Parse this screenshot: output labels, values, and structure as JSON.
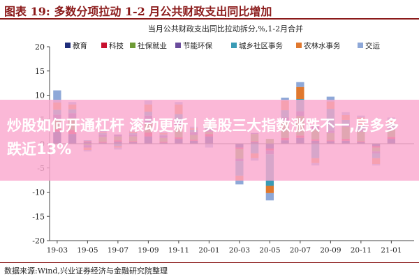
{
  "header": {
    "title": "图表 19: 多数分项拉动 1-2 月公共财政支出同比增加"
  },
  "footer": {
    "source": "数据来源:Wind,兴业证券经济与金融研究院整理"
  },
  "banner": {
    "text": "炒股如何开通杠杆 滚动更新丨美股三大指数涨跌不一,房多多跌近13%"
  },
  "chart_data": {
    "type": "bar",
    "stacked": true,
    "title": "当月公共财政支出同比拉动拆分,%,1-2月合并",
    "ylim": [
      -20,
      20
    ],
    "yticks": [
      -20,
      -15,
      -10,
      -5,
      0,
      5,
      10,
      15,
      20
    ],
    "categories": [
      "19-03",
      "19-04",
      "19-05",
      "19-06",
      "19-07",
      "19-08",
      "19-09",
      "19-10",
      "19-11",
      "19-12",
      "20-01",
      "20-02",
      "20-03",
      "20-04",
      "20-05",
      "20-06",
      "20-07",
      "20-08",
      "20-09",
      "20-10",
      "20-11",
      "20-12",
      "21-01",
      "21-02"
    ],
    "xtick_labels": [
      "19-03",
      "19-05",
      "19-07",
      "19-09",
      "19-11",
      "20-01",
      "20-03",
      "20-05",
      "20-07",
      "20-09",
      "20-11",
      "21-01"
    ],
    "legend_position": "top",
    "series": [
      {
        "name": "教育",
        "color": "#1F2D7A",
        "values": [
          2.5,
          2.0,
          0.3,
          0.2,
          0.4,
          0.3,
          1.5,
          0.2,
          1.0,
          0.6,
          1.5,
          0,
          -0.8,
          0.3,
          -1.0,
          0.7,
          1.2,
          0.6,
          0.5,
          0.6,
          0.3,
          -0.5,
          1.0,
          0
        ]
      },
      {
        "name": "科技",
        "color": "#C8102E",
        "values": [
          0.5,
          0.8,
          0.2,
          0.2,
          0.3,
          0.2,
          0.8,
          0.2,
          0.3,
          0.2,
          0.5,
          0,
          -0.3,
          0.2,
          -0.4,
          0.5,
          0.5,
          0.3,
          0.2,
          0.4,
          0.2,
          -0.3,
          0.4,
          0
        ]
      },
      {
        "name": "社保就业",
        "color": "#6E9B36",
        "values": [
          2.0,
          2.5,
          -0.3,
          1.0,
          0.8,
          1.0,
          2.0,
          0.8,
          2.5,
          1.0,
          0.5,
          0,
          -2.0,
          1.5,
          1.0,
          3.5,
          4.0,
          2.0,
          1.5,
          2.5,
          2.0,
          -0.8,
          1.5,
          0
        ]
      },
      {
        "name": "节能环保",
        "color": "#6A4C9C",
        "values": [
          1.0,
          1.0,
          -0.5,
          0.5,
          0.4,
          0.4,
          1.5,
          0.5,
          0.8,
          0.6,
          0.5,
          0,
          -0.5,
          0.2,
          -0.8,
          0.7,
          1.0,
          0.8,
          0.5,
          0.4,
          0.4,
          -0.4,
          0.5,
          0
        ]
      },
      {
        "name": "城乡社区事务",
        "color": "#3A9BB5",
        "values": [
          1.0,
          0.8,
          0.2,
          0.3,
          -0.5,
          0.3,
          0.8,
          0.2,
          1.5,
          0.5,
          0.5,
          0,
          -3.0,
          -2.0,
          -6.5,
          1.5,
          2.5,
          -3.0,
          4.5,
          1.0,
          1.0,
          -1.0,
          0.8,
          0
        ]
      },
      {
        "name": "农林水事务",
        "color": "#E0782E",
        "values": [
          1.5,
          1.0,
          -0.5,
          0.2,
          -0.3,
          0.3,
          1.5,
          0.3,
          2.0,
          0.3,
          0.5,
          0,
          -1.0,
          -1.0,
          -1.5,
          2.0,
          2.5,
          -1.0,
          1.5,
          1.0,
          1.5,
          -1.2,
          0.6,
          0
        ]
      },
      {
        "name": "交运",
        "color": "#8EA8D8",
        "values": [
          2.5,
          0.5,
          -0.3,
          0.2,
          -0.4,
          0.2,
          0.8,
          0.2,
          0.5,
          0.3,
          -0.8,
          0,
          -0.8,
          -0.5,
          -1.5,
          0.6,
          1.0,
          -0.5,
          1.0,
          0.6,
          0.4,
          -0.3,
          0.6,
          0
        ]
      }
    ]
  }
}
